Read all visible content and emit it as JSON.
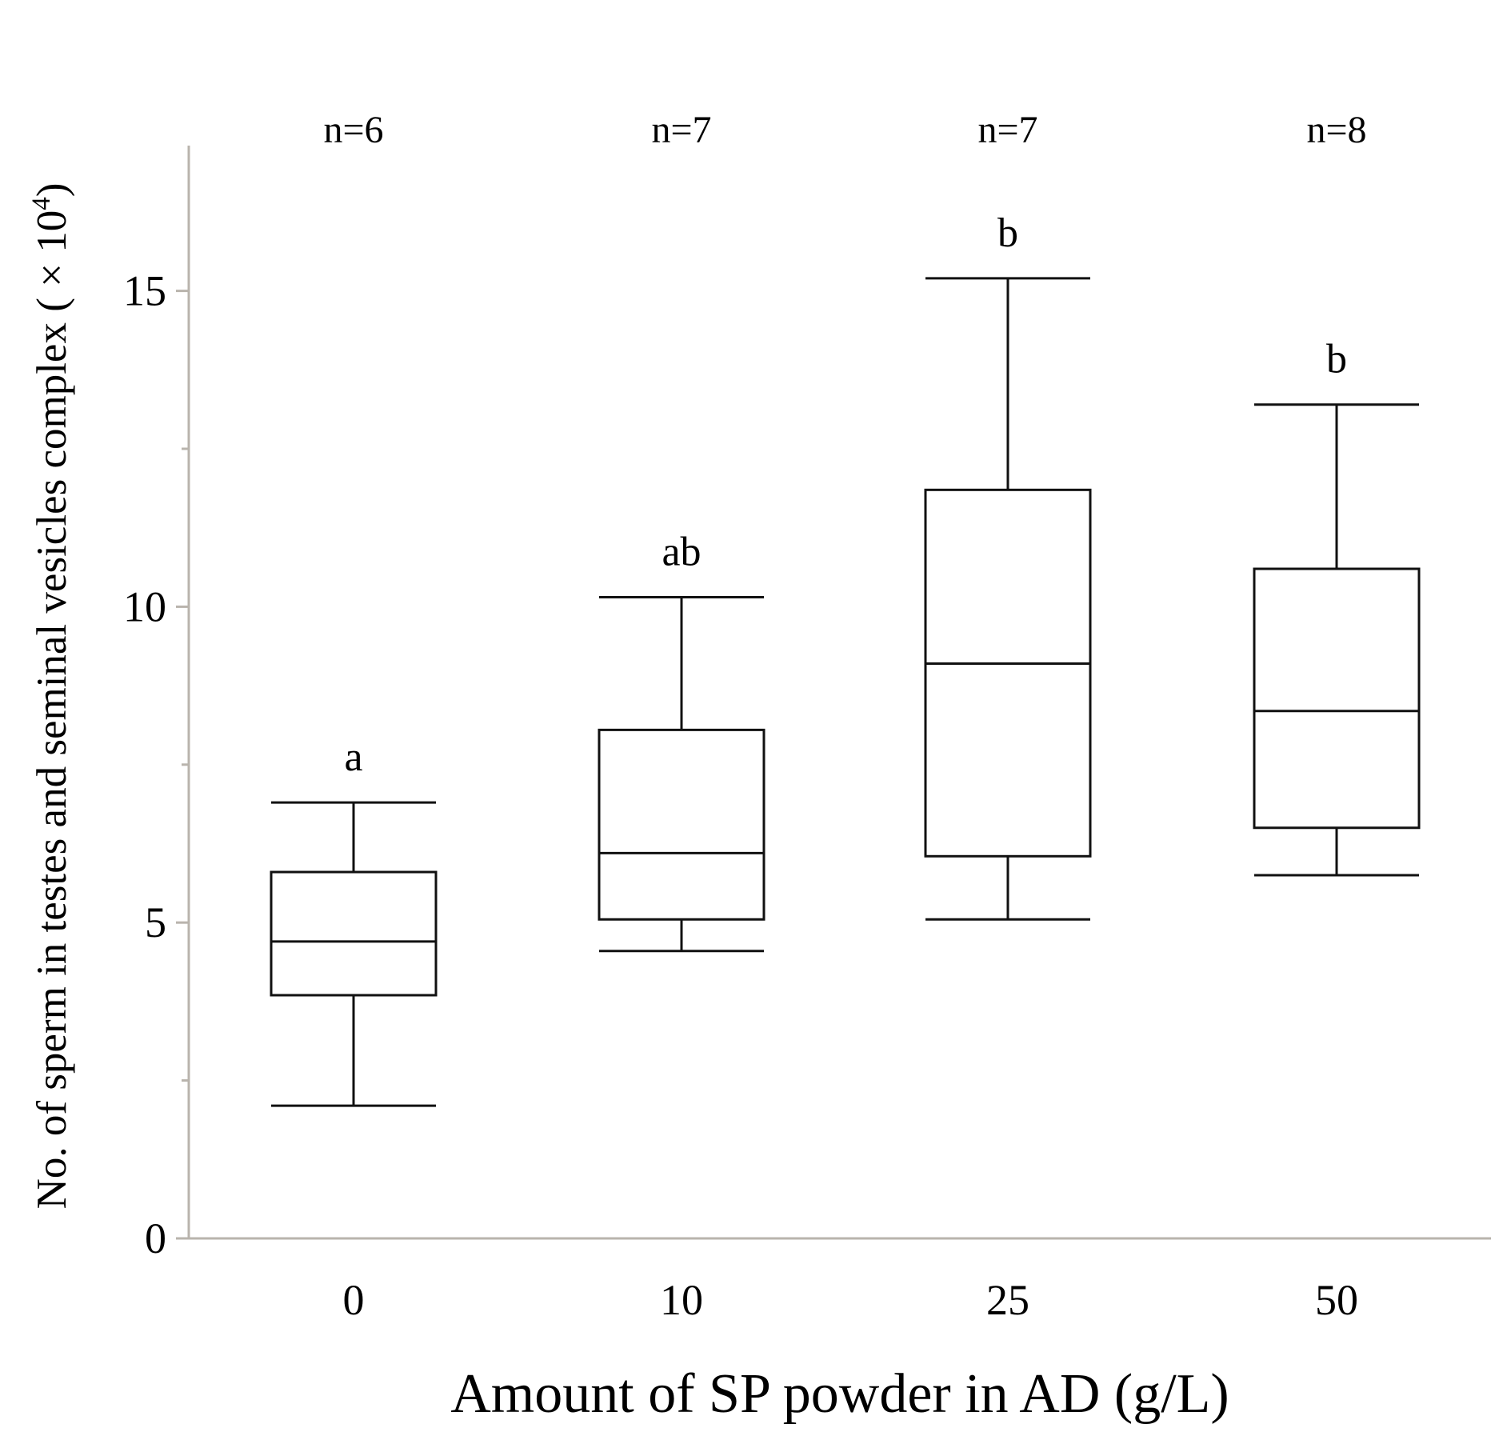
{
  "chart_data": {
    "type": "boxplot",
    "title": "",
    "xlabel": "Amount of SP powder in AD (g/L)",
    "ylabel": "No. of sperm in testes and seminal vesicles complex ( × 10",
    "ylabel_superscript": "4",
    "ylabel_suffix": ")",
    "ylim": [
      0,
      17.3
    ],
    "yticks_major": [
      0,
      5,
      10,
      15
    ],
    "yticks_minor": [
      2.5,
      7.5,
      12.5
    ],
    "categories": [
      "0",
      "10",
      "25",
      "50"
    ],
    "sample_sizes": [
      "n=6",
      "n=7",
      "n=7",
      "n=8"
    ],
    "significance_letters": [
      "a",
      "ab",
      "b",
      "b"
    ],
    "boxes": [
      {
        "category": "0",
        "min": 2.1,
        "q1": 3.85,
        "median": 4.7,
        "q3": 5.8,
        "max": 6.9
      },
      {
        "category": "10",
        "min": 4.55,
        "q1": 5.05,
        "median": 6.1,
        "q3": 8.05,
        "max": 10.15
      },
      {
        "category": "25",
        "min": 5.05,
        "q1": 6.05,
        "median": 9.1,
        "q3": 11.85,
        "max": 15.2
      },
      {
        "category": "50",
        "min": 5.75,
        "q1": 6.5,
        "median": 8.35,
        "q3": 10.6,
        "max": 13.2
      }
    ]
  }
}
